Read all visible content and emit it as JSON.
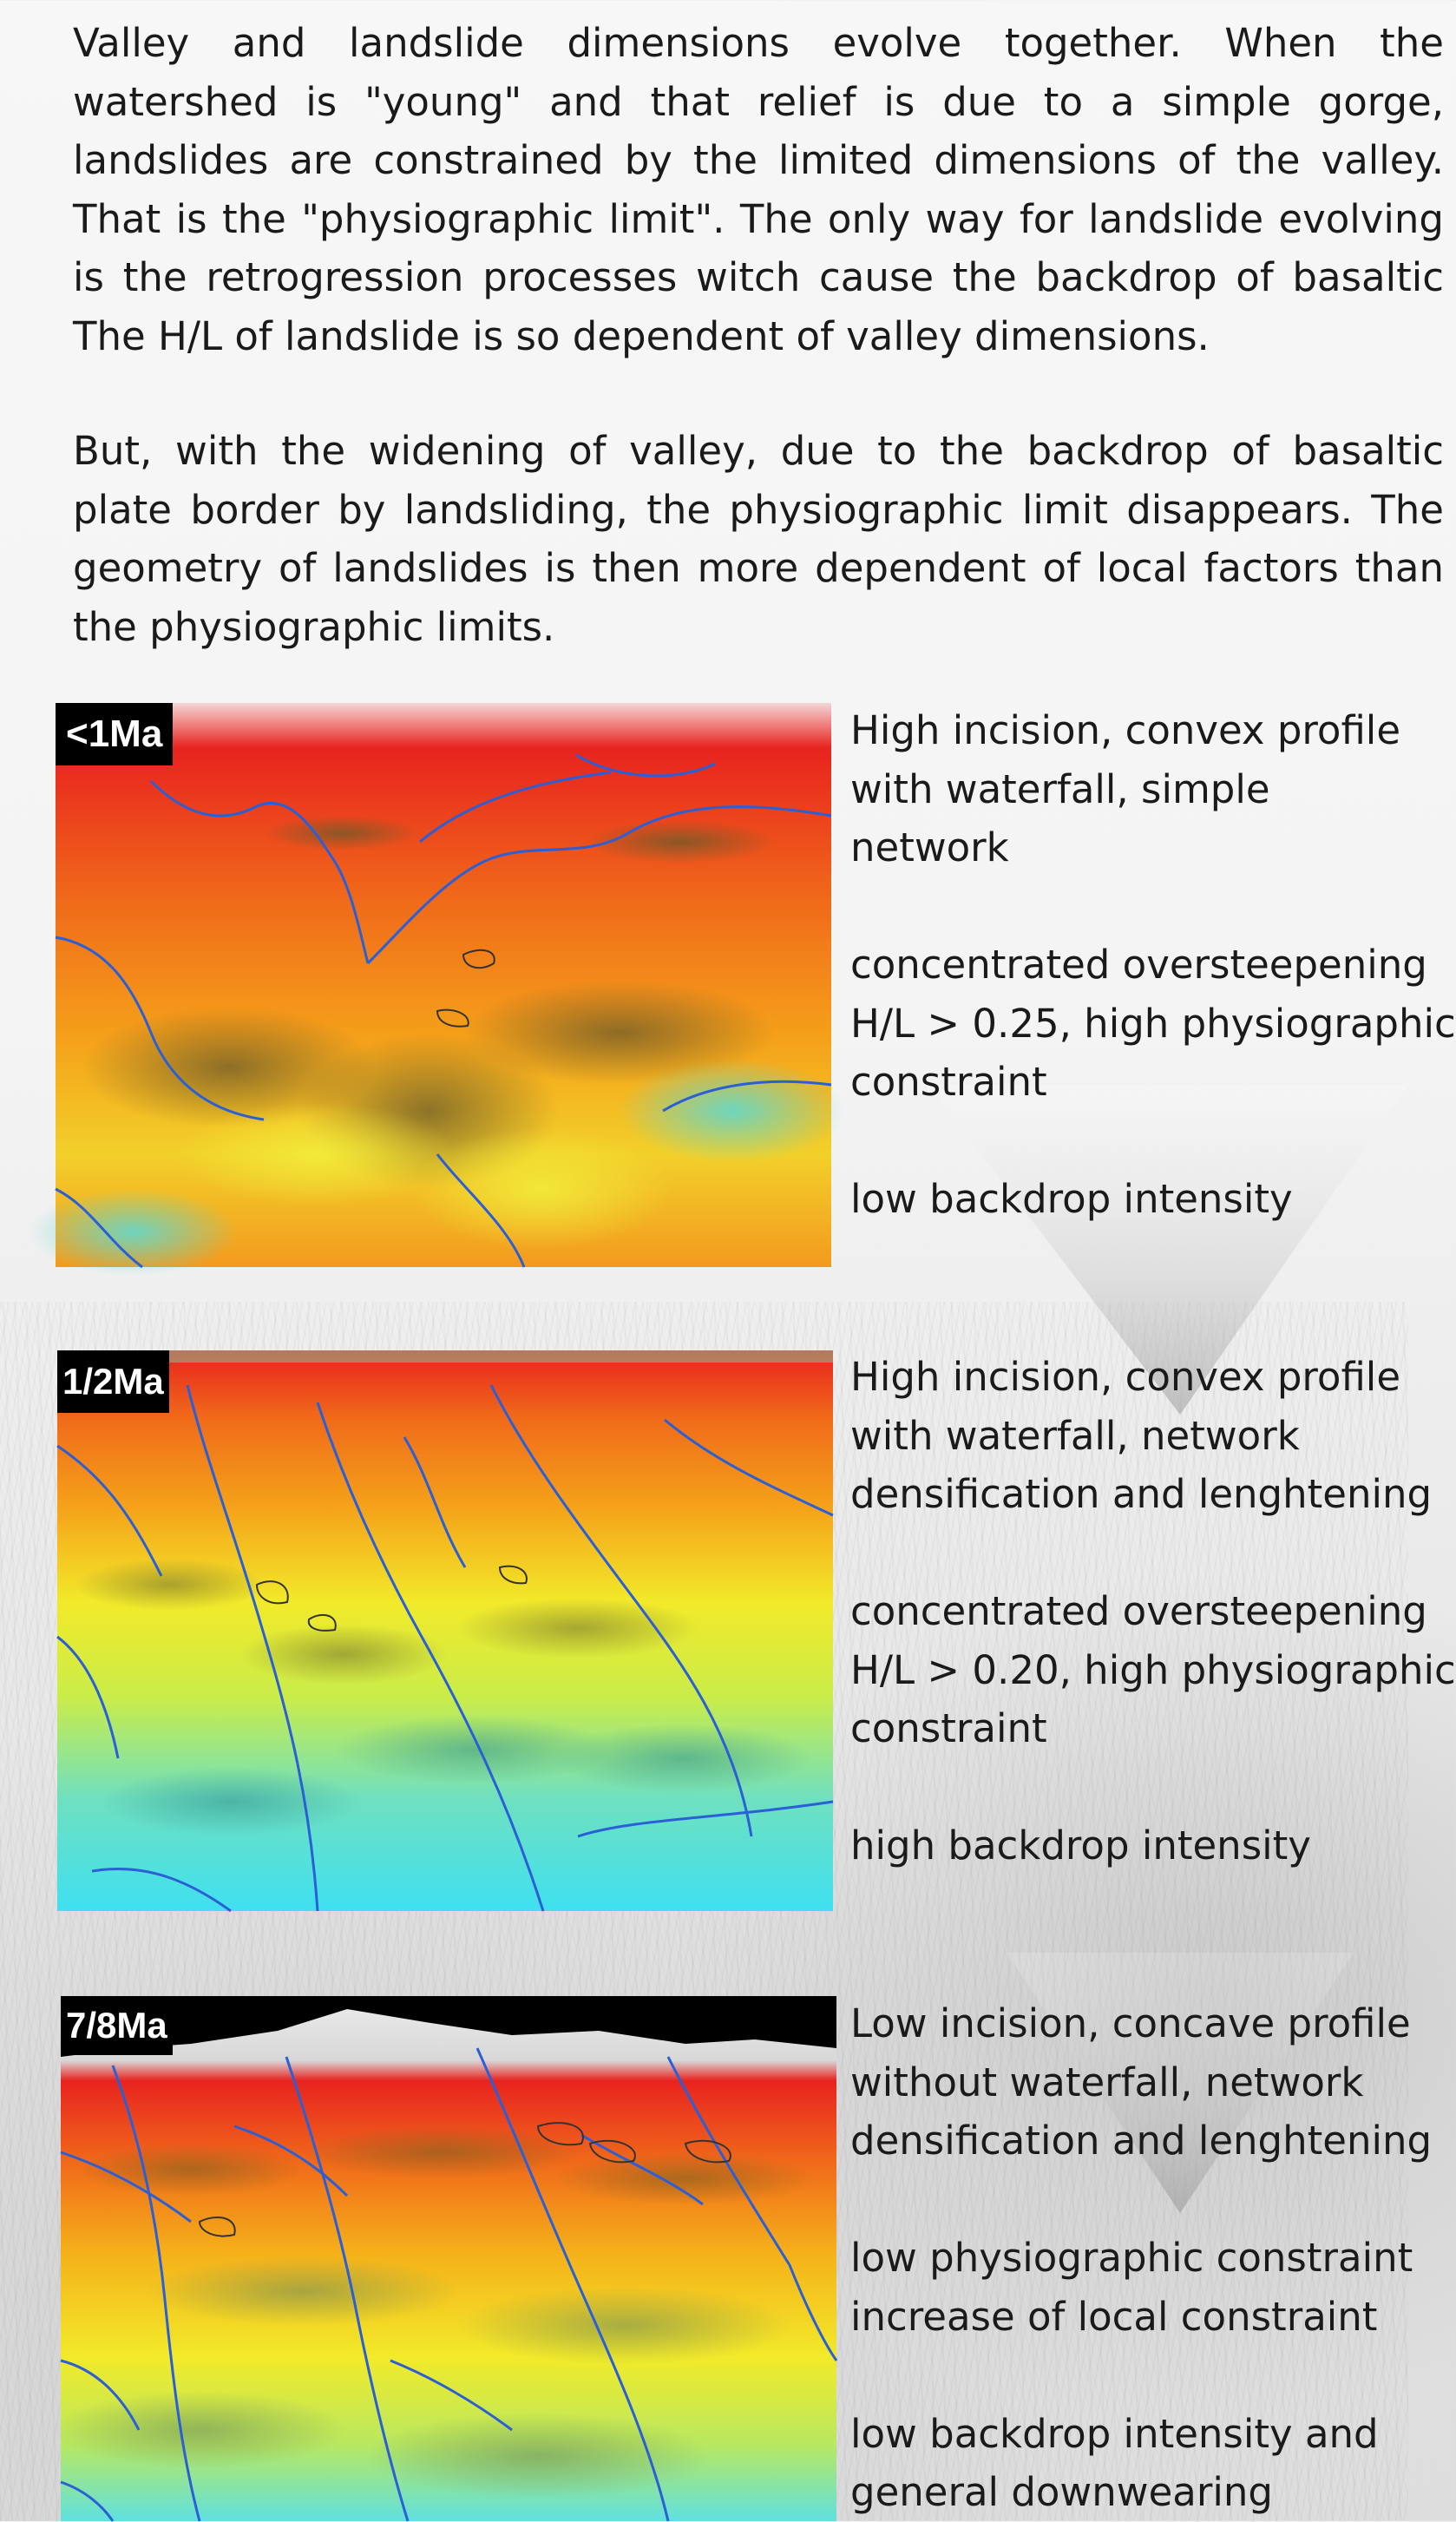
{
  "intro": {
    "paragraph1": [
      "Valley and landslide dimensions evolve together. When the",
      "watershed is \"young\" and that relief is due to a simple gorge,",
      "landslides are constrained by the limited dimensions of the valley.",
      "That is the \"physiographic limit\". The only way for landslide evolving",
      "is the retrogression processes witch cause the backdrop of basaltic",
      "The H/L of landslide is so dependent of valley dimensions."
    ],
    "paragraph2": [
      "But, with the widening of valley, due to the backdrop of basaltic",
      "plate border by landsliding, the physiographic limit disappears. The",
      "geometry of landslides is then more dependent of local factors than",
      "the physiographic limits."
    ]
  },
  "stages": [
    {
      "badge": "<1Ma",
      "descriptions": [
        [
          "High incision, convex profile",
          "with waterfall, simple",
          "network"
        ],
        [
          "concentrated oversteepening",
          "H/L > 0.25, high physiographic",
          "constraint"
        ],
        [
          "low backdrop intensity"
        ]
      ]
    },
    {
      "badge": "1/2Ma",
      "descriptions": [
        [
          "High incision, convex profile",
          "with waterfall, network",
          "densification and lenghtening"
        ],
        [
          "concentrated oversteepening",
          "H/L > 0.20, high physiographic",
          "constraint"
        ],
        [
          "high backdrop intensity"
        ]
      ]
    },
    {
      "badge": "7/8Ma",
      "descriptions": [
        [
          "Low incision, concave profile",
          "without waterfall, network",
          "densification and lenghtening"
        ],
        [
          "low physiographic constraint",
          "increase of local constraint"
        ],
        [
          "low backdrop intensity and",
          "general downwearing"
        ]
      ]
    }
  ],
  "colors": {
    "elevation_high": "#e8231f",
    "elevation_mid": "#f5a21a",
    "elevation_low_mid": "#f2ea2a",
    "elevation_low": "#3fe0f0",
    "rivers": "#2a5fd6",
    "badge_bg": "#000000",
    "badge_text": "#ffffff"
  }
}
